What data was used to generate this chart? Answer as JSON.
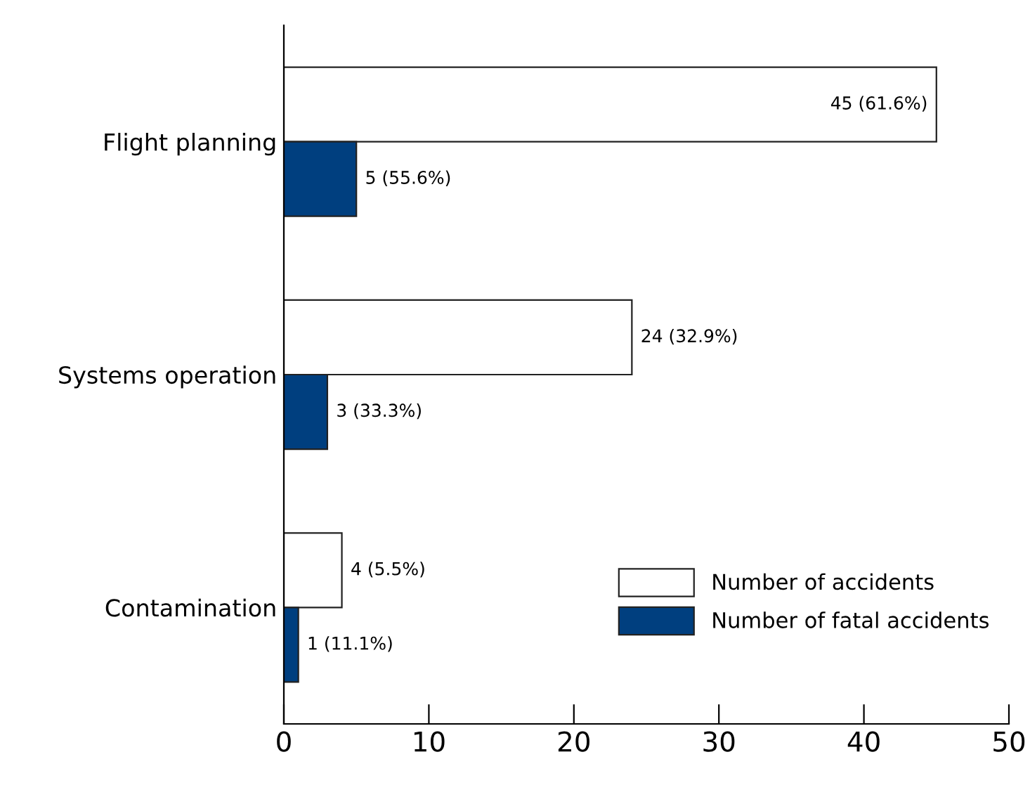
{
  "chart_data": {
    "type": "bar",
    "orientation": "horizontal",
    "categories": [
      "Flight planning",
      "Systems operation",
      "Contamination"
    ],
    "series": [
      {
        "name": "Number of accidents",
        "color": "#ffffff",
        "values": [
          45,
          24,
          4
        ],
        "value_labels": [
          "45 (61.6%)",
          "24 (32.9%)",
          "4 (5.5%)"
        ]
      },
      {
        "name": "Number of fatal accidents",
        "color": "#003f7f",
        "values": [
          5,
          3,
          1
        ],
        "value_labels": [
          "5 (55.6%)",
          "3 (33.3%)",
          "1 (11.1%)"
        ]
      }
    ],
    "xlim": [
      0,
      50
    ],
    "xticks": [
      0,
      10,
      20,
      30,
      40,
      50
    ],
    "grid": false,
    "legend": "bottom right"
  }
}
